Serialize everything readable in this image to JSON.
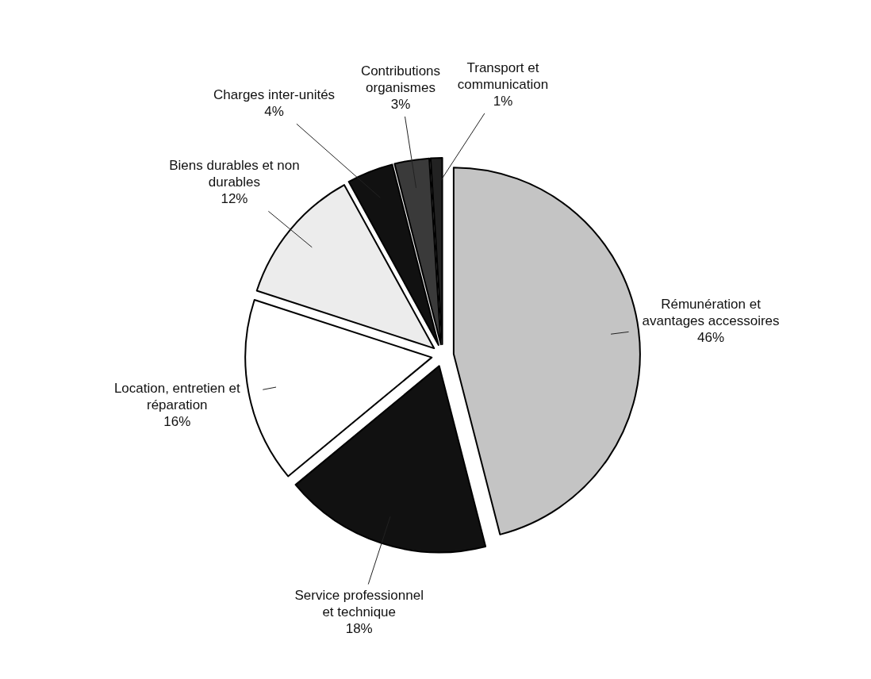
{
  "chart_data": {
    "type": "pie",
    "categories": [
      "Rémunération et avantages accessoires",
      "Service professionnel et technique",
      "Location, entretien et réparation",
      "Biens durables et non durables",
      "Charges inter-unités",
      "Contributions organismes",
      "Transport et communication"
    ],
    "values": [
      46,
      18,
      16,
      12,
      4,
      3,
      1
    ],
    "value_labels": [
      "46%",
      "18%",
      "16%",
      "12%",
      "4%",
      "3%",
      "1%"
    ],
    "colors": [
      "#c4c4c4",
      "#111111",
      "#ffffff",
      "#ececec",
      "#111111",
      "#3a3a3a",
      "#222222"
    ]
  }
}
